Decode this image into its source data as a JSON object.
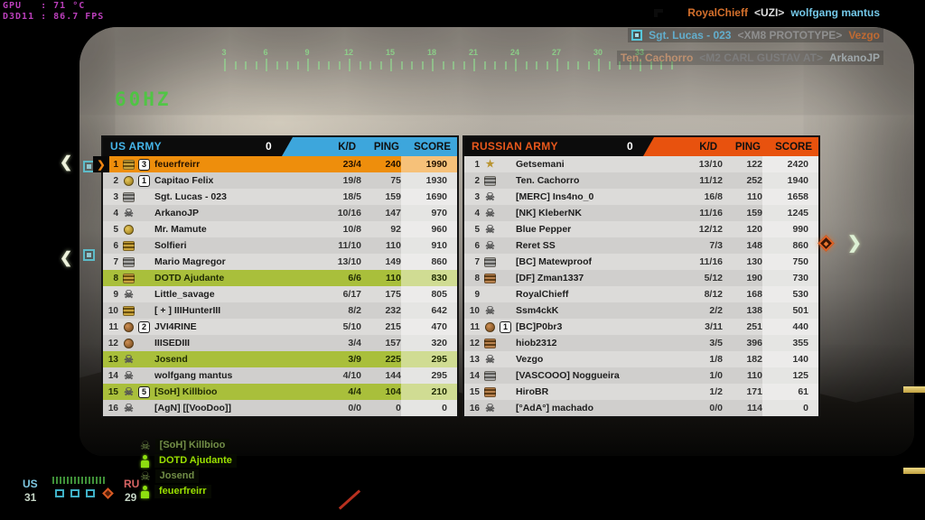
{
  "osd": {
    "gpu_line1": "GPU   : 71 °C",
    "gpu_line2": "D3D11 : 86.7 FPS",
    "refresh_rate": "60HZ"
  },
  "compass": {
    "labels": [
      "3",
      "6",
      "9",
      "12",
      "15",
      "18",
      "21",
      "24",
      "27",
      "30",
      "33"
    ]
  },
  "killfeed": [
    {
      "arrow": true,
      "spot": false,
      "killer": "RoyalChieff",
      "killer_color": "#d4702c",
      "weapon": "<UZI>",
      "weapon_color": "#dedede",
      "victim": "wolfgang mantus",
      "victim_color": "#74c8e8",
      "bg": "rgba(0,0,0,0.55)"
    },
    {
      "arrow": false,
      "spot": true,
      "killer": "Sgt. Lucas - 023",
      "killer_color": "#63aecd",
      "weapon": "<XM8 PROTOTYPE>",
      "weapon_color": "#8f8f8f",
      "victim": "Vezgo",
      "victim_color": "#c06a32",
      "bg": "rgba(25,25,25,0.28)"
    },
    {
      "arrow": false,
      "spot": false,
      "killer": "Ten. Cachorro",
      "killer_color": "#bd9070",
      "weapon": "<M2 CARL GUSTAV AT>",
      "weapon_color": "#7d7d7d",
      "victim": "ArkanoJP",
      "victim_color": "#9fa8ab",
      "bg": "rgba(25,25,25,0.22)"
    }
  ],
  "scoreboard": {
    "columns": {
      "kd": "K/D",
      "ping": "PING",
      "score": "SCORE"
    },
    "teams": [
      {
        "name": "US ARMY",
        "flag_count": "0",
        "accent": "#3da6dc",
        "players": [
          {
            "rank": "1",
            "icon": "rank-gold",
            "squad": "3",
            "name": "feuerfreirr",
            "kd": "23/4",
            "ping": "240",
            "score": "1990",
            "highlight": "self"
          },
          {
            "rank": "2",
            "icon": "medal-gold",
            "squad": "1",
            "name": "Capitao Felix",
            "kd": "19/8",
            "ping": "75",
            "score": "1930",
            "highlight": null
          },
          {
            "rank": "3",
            "icon": "rank-grey",
            "squad": null,
            "name": "Sgt. Lucas - 023",
            "kd": "18/5",
            "ping": "159",
            "score": "1690",
            "highlight": null
          },
          {
            "rank": "4",
            "icon": "skull",
            "squad": null,
            "name": "ArkanoJP",
            "kd": "10/16",
            "ping": "147",
            "score": "970",
            "highlight": null
          },
          {
            "rank": "5",
            "icon": "medal-gold",
            "squad": null,
            "name": "Mr. Mamute",
            "kd": "10/8",
            "ping": "92",
            "score": "960",
            "highlight": null
          },
          {
            "rank": "6",
            "icon": "rank-gold",
            "squad": null,
            "name": "Solfieri",
            "kd": "11/10",
            "ping": "110",
            "score": "910",
            "highlight": null
          },
          {
            "rank": "7",
            "icon": "rank-grey",
            "squad": null,
            "name": "Mario Magregor",
            "kd": "13/10",
            "ping": "149",
            "score": "860",
            "highlight": null
          },
          {
            "rank": "8",
            "icon": "rank-gold",
            "squad": null,
            "name": "DOTD Ajudante",
            "kd": "6/6",
            "ping": "110",
            "score": "830",
            "highlight": "squad"
          },
          {
            "rank": "9",
            "icon": "skull",
            "squad": null,
            "name": "Little_savage",
            "kd": "6/17",
            "ping": "175",
            "score": "805",
            "highlight": null
          },
          {
            "rank": "10",
            "icon": "rank-gold",
            "squad": null,
            "name": "[ + ] IIIHunterIII",
            "kd": "8/2",
            "ping": "232",
            "score": "642",
            "highlight": null
          },
          {
            "rank": "11",
            "icon": "medal-bronze",
            "squad": "2",
            "name": "JVI4RINE",
            "kd": "5/10",
            "ping": "215",
            "score": "470",
            "highlight": null
          },
          {
            "rank": "12",
            "icon": "medal-bronze",
            "squad": null,
            "name": "IIISEDIII",
            "kd": "3/4",
            "ping": "157",
            "score": "320",
            "highlight": null
          },
          {
            "rank": "13",
            "icon": "skull",
            "squad": null,
            "name": "Josend",
            "kd": "3/9",
            "ping": "225",
            "score": "295",
            "highlight": "squad"
          },
          {
            "rank": "14",
            "icon": "skull",
            "squad": null,
            "name": "wolfgang mantus",
            "kd": "4/10",
            "ping": "144",
            "score": "295",
            "highlight": null
          },
          {
            "rank": "15",
            "icon": "skull",
            "squad": "5",
            "name": "[SoH] Killbioo",
            "kd": "4/4",
            "ping": "104",
            "score": "210",
            "highlight": "squad"
          },
          {
            "rank": "16",
            "icon": "skull",
            "squad": null,
            "name": "[AgN] [[VooDoo]]",
            "kd": "0/0",
            "ping": "0",
            "score": "0",
            "highlight": null
          }
        ]
      },
      {
        "name": "RUSSIAN ARMY",
        "flag_count": "0",
        "accent": "#e8520e",
        "players": [
          {
            "rank": "1",
            "icon": "star-gold",
            "squad": null,
            "name": "Getsemani",
            "kd": "13/10",
            "ping": "122",
            "score": "2420",
            "highlight": null
          },
          {
            "rank": "2",
            "icon": "rank-grey",
            "squad": null,
            "name": "Ten. Cachorro",
            "kd": "11/12",
            "ping": "252",
            "score": "1940",
            "highlight": null
          },
          {
            "rank": "3",
            "icon": "skull",
            "squad": null,
            "name": "[MERC] Ins4no_0",
            "kd": "16/8",
            "ping": "110",
            "score": "1658",
            "highlight": null
          },
          {
            "rank": "4",
            "icon": "skull",
            "squad": null,
            "name": "[NK] KleberNK",
            "kd": "11/16",
            "ping": "159",
            "score": "1245",
            "highlight": null
          },
          {
            "rank": "5",
            "icon": "skull",
            "squad": null,
            "name": "Blue Pepper",
            "kd": "12/12",
            "ping": "120",
            "score": "990",
            "highlight": null
          },
          {
            "rank": "6",
            "icon": "skull",
            "squad": null,
            "name": "Reret SS",
            "kd": "7/3",
            "ping": "148",
            "score": "860",
            "highlight": null
          },
          {
            "rank": "7",
            "icon": "rank-grey",
            "squad": null,
            "name": "[BC] Matewproof",
            "kd": "11/16",
            "ping": "130",
            "score": "750",
            "highlight": null
          },
          {
            "rank": "8",
            "icon": "rank-bronze",
            "squad": null,
            "name": "[DF] Zman1337",
            "kd": "5/12",
            "ping": "190",
            "score": "730",
            "highlight": null
          },
          {
            "rank": "9",
            "icon": "none",
            "squad": null,
            "name": "RoyalChieff",
            "kd": "8/12",
            "ping": "168",
            "score": "530",
            "highlight": null
          },
          {
            "rank": "10",
            "icon": "skull",
            "squad": null,
            "name": "Ssm4ckK",
            "kd": "2/2",
            "ping": "138",
            "score": "501",
            "highlight": null
          },
          {
            "rank": "11",
            "icon": "medal-bronze",
            "squad": "1",
            "name": "[BC]P0br3",
            "kd": "3/11",
            "ping": "251",
            "score": "440",
            "highlight": null
          },
          {
            "rank": "12",
            "icon": "rank-bronze",
            "squad": null,
            "name": "hiob2312",
            "kd": "3/5",
            "ping": "396",
            "score": "355",
            "highlight": null
          },
          {
            "rank": "13",
            "icon": "skull",
            "squad": null,
            "name": "Vezgo",
            "kd": "1/8",
            "ping": "182",
            "score": "140",
            "highlight": null
          },
          {
            "rank": "14",
            "icon": "rank-grey",
            "squad": null,
            "name": "[VASCOOO] Noggueira",
            "kd": "1/0",
            "ping": "110",
            "score": "125",
            "highlight": null
          },
          {
            "rank": "15",
            "icon": "rank-bronze",
            "squad": null,
            "name": "HiroBR",
            "kd": "1/2",
            "ping": "171",
            "score": "61",
            "highlight": null
          },
          {
            "rank": "16",
            "icon": "skull",
            "squad": null,
            "name": "[°AdA°] machado",
            "kd": "0/0",
            "ping": "114",
            "score": "0",
            "highlight": null
          }
        ]
      }
    ]
  },
  "tickets": {
    "us_label": "US",
    "us_value": "31",
    "ru_label": "RU",
    "ru_value": "29",
    "flag_squares": 3
  },
  "squad_list": [
    {
      "name": "[SoH] Killbioo",
      "dead": true
    },
    {
      "name": "DOTD Ajudante",
      "dead": false
    },
    {
      "name": "Josend",
      "dead": true
    },
    {
      "name": "feuerfreirr",
      "dead": false
    }
  ],
  "colors": {
    "us_accent": "#3da6dc",
    "ru_accent": "#e8520e",
    "self_row": "#ee8e0c",
    "squad_row": "#a9bf3b",
    "osd_magenta": "#bb3fbb",
    "osd_green": "#44cd3a"
  }
}
